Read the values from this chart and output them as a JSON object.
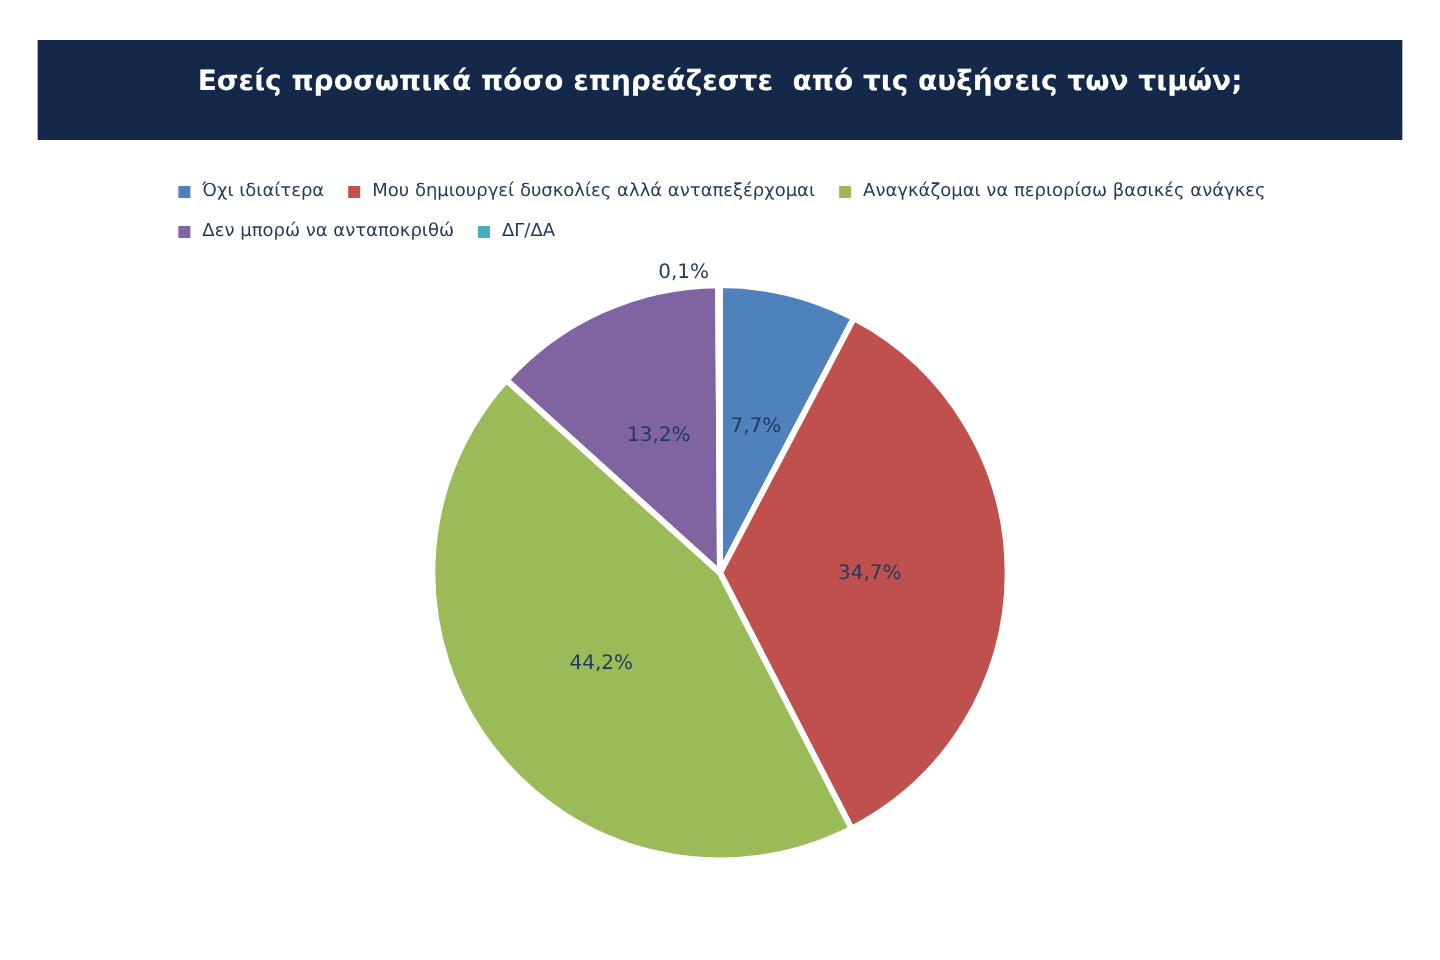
{
  "chart_data": {
    "type": "pie",
    "title": "Εσείς προσωπικά πόσο επηρεάζεστε  από τις αυξήσεις των τιμών;",
    "categories": [
      "Όχι ιδιαίτερα",
      "Μου δημιουργεί δυσκολίες αλλά ανταπεξέρχομαι",
      "Αναγκάζομαι να περιορίσω βασικές ανάγκες",
      "Δεν μπορώ να ανταποκριθώ",
      "ΔΓ/ΔΑ"
    ],
    "values": [
      7.7,
      34.7,
      44.2,
      13.2,
      0.1
    ],
    "value_labels": [
      "7,7%",
      "34,7%",
      "44,2%",
      "13,2%",
      "0,1%"
    ],
    "colors": [
      "#4f81bd",
      "#c0504d",
      "#9bbb59",
      "#8064a2",
      "#4bacc6"
    ],
    "legend": "top"
  }
}
